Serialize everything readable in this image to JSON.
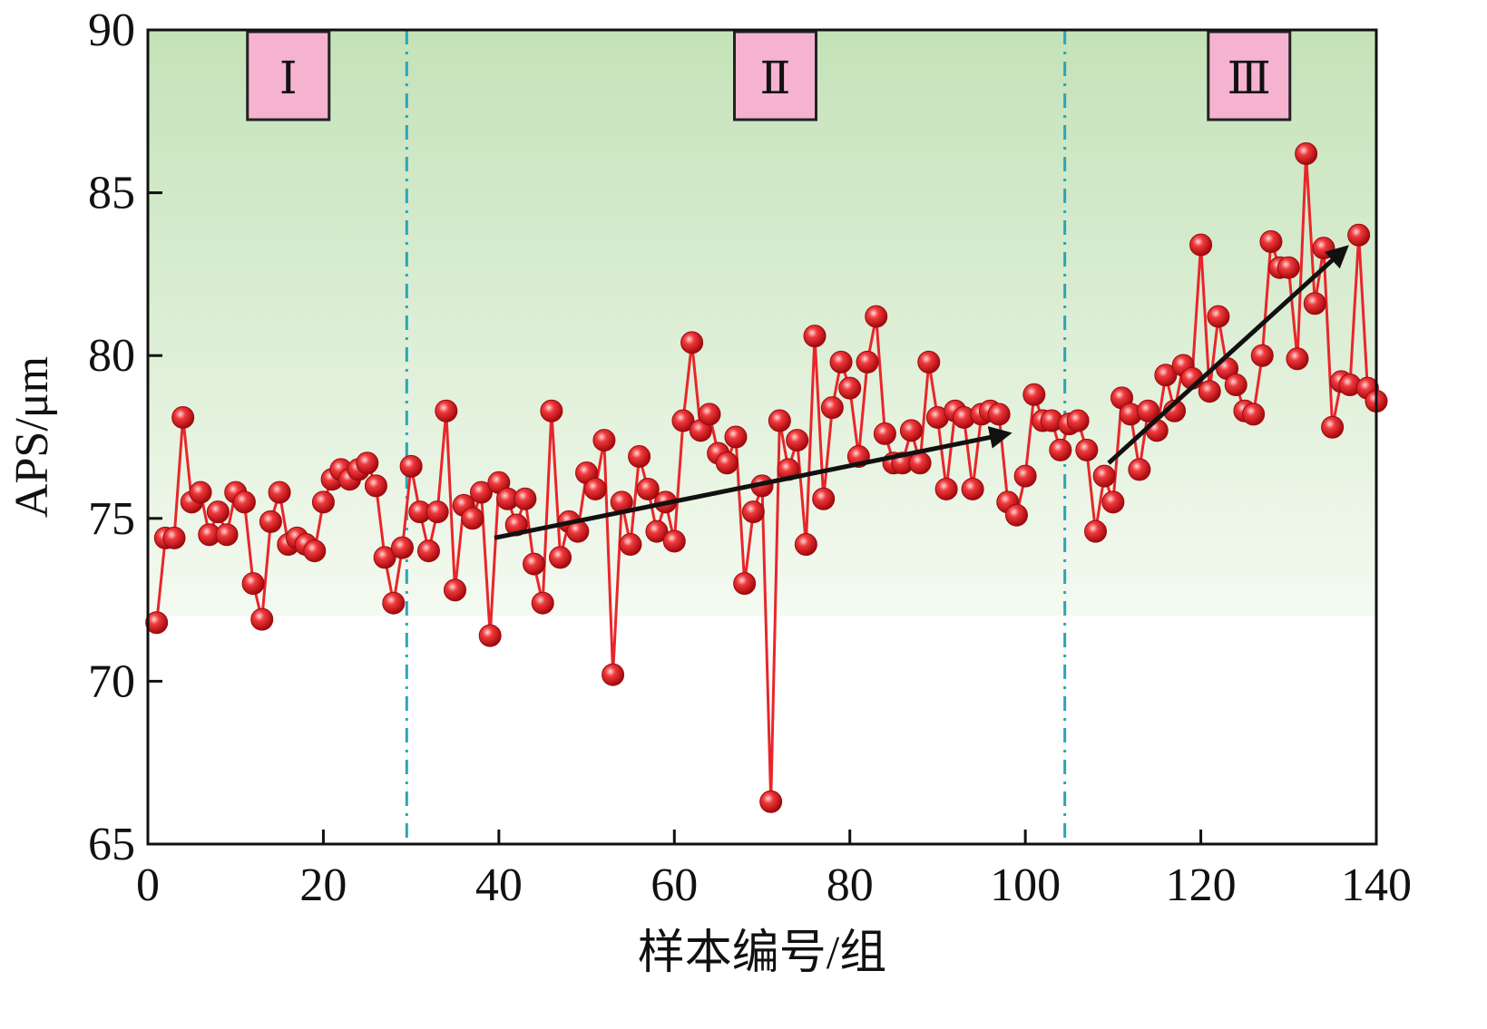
{
  "chart_data": {
    "type": "line",
    "xlabel": "样本编号/组",
    "ylabel": "APS/μm",
    "xlim": [
      0,
      140
    ],
    "ylim": [
      65,
      90
    ],
    "xticks": [
      0,
      20,
      40,
      60,
      80,
      100,
      120,
      140
    ],
    "yticks": [
      65,
      70,
      75,
      80,
      85,
      90
    ],
    "band": {
      "from": 72,
      "to": 90,
      "color_top": "#c4e2b8",
      "color_bottom": "#f4faf1"
    },
    "region_dividers": [
      29.5,
      104.5
    ],
    "regions": [
      {
        "label": "Ⅰ",
        "x": 16
      },
      {
        "label": "Ⅱ",
        "x": 71.5
      },
      {
        "label": "Ⅲ",
        "x": 125.5
      }
    ],
    "trend_arrows": [
      {
        "from": [
          39.5,
          74.4
        ],
        "to": [
          98,
          77.6
        ]
      },
      {
        "from": [
          109.5,
          76.7
        ],
        "to": [
          136.5,
          83.3
        ]
      }
    ],
    "series": [
      {
        "name": "APS",
        "color": "#e8262a",
        "marker_color": "#e8262a",
        "x": [
          1,
          2,
          3,
          4,
          5,
          6,
          7,
          8,
          9,
          10,
          11,
          12,
          13,
          14,
          15,
          16,
          17,
          18,
          19,
          20,
          21,
          22,
          23,
          24,
          25,
          26,
          27,
          28,
          29,
          30,
          31,
          32,
          33,
          34,
          35,
          36,
          37,
          38,
          39,
          40,
          41,
          42,
          43,
          44,
          45,
          46,
          47,
          48,
          49,
          50,
          51,
          52,
          53,
          54,
          55,
          56,
          57,
          58,
          59,
          60,
          61,
          62,
          63,
          64,
          65,
          66,
          67,
          68,
          69,
          70,
          71,
          72,
          73,
          74,
          75,
          76,
          77,
          78,
          79,
          80,
          81,
          82,
          83,
          84,
          85,
          86,
          87,
          88,
          89,
          90,
          91,
          92,
          93,
          94,
          95,
          96,
          97,
          98,
          99,
          100,
          101,
          102,
          103,
          104,
          105,
          106,
          107,
          108,
          109,
          110,
          111,
          112,
          113,
          114,
          115,
          116,
          117,
          118,
          119,
          120,
          121,
          122,
          123,
          124,
          125,
          126,
          127,
          128,
          129,
          130,
          131,
          132,
          133,
          134,
          135,
          136,
          137,
          138,
          139,
          140
        ],
        "values": [
          71.8,
          74.4,
          74.4,
          78.1,
          75.5,
          75.8,
          74.5,
          75.2,
          74.5,
          75.8,
          75.5,
          73.0,
          71.9,
          74.9,
          75.8,
          74.2,
          74.4,
          74.2,
          74.0,
          75.5,
          76.2,
          76.5,
          76.2,
          76.5,
          76.7,
          76.0,
          73.8,
          72.4,
          74.1,
          76.6,
          75.2,
          74.0,
          75.2,
          78.3,
          72.8,
          75.4,
          75.0,
          75.8,
          71.4,
          76.1,
          75.6,
          74.8,
          75.6,
          73.6,
          72.4,
          78.3,
          73.8,
          74.9,
          74.6,
          76.4,
          75.9,
          77.4,
          70.2,
          75.5,
          74.2,
          76.9,
          75.9,
          74.6,
          75.5,
          74.3,
          78.0,
          80.4,
          77.7,
          78.2,
          77.0,
          76.7,
          77.5,
          73.0,
          75.2,
          76.0,
          66.3,
          78.0,
          76.5,
          77.4,
          74.2,
          80.6,
          75.6,
          78.4,
          79.8,
          79.0,
          76.9,
          79.8,
          81.2,
          77.6,
          76.7,
          76.7,
          77.7,
          76.7,
          79.8,
          78.1,
          75.9,
          78.3,
          78.1,
          75.9,
          78.2,
          78.3,
          78.2,
          75.5,
          75.1,
          76.3,
          78.8,
          78.0,
          78.0,
          77.1,
          77.9,
          78.0,
          77.1,
          74.6,
          76.3,
          75.5,
          78.7,
          78.2,
          76.5,
          78.3,
          77.7,
          79.4,
          78.3,
          79.7,
          79.3,
          83.4,
          78.9,
          81.2,
          79.6,
          79.1,
          78.3,
          78.2,
          80.0,
          83.5,
          82.7,
          82.7,
          79.9,
          86.2,
          81.6,
          83.3,
          77.8,
          79.2,
          79.1,
          83.7,
          79.0,
          78.6
        ]
      }
    ]
  }
}
